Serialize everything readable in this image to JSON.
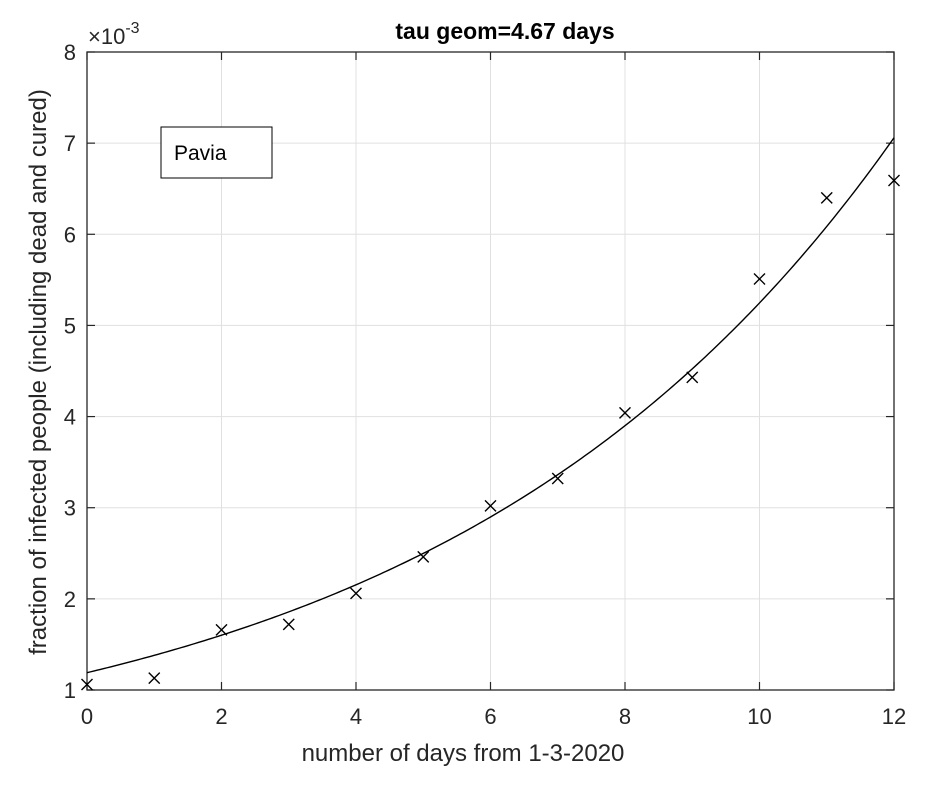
{
  "chart_data": {
    "type": "scatter",
    "title": "tau geom=4.67 days",
    "xlabel": "number of days from 1-3-2020",
    "ylabel": "fraction of infected people (including dead and cured)",
    "exponent_label": {
      "prefix": "×10",
      "power": "-3"
    },
    "xlim": [
      0,
      12
    ],
    "ylim": [
      1,
      8
    ],
    "xticks": [
      0,
      2,
      4,
      6,
      8,
      10,
      12
    ],
    "yticks": [
      1,
      2,
      3,
      4,
      5,
      6,
      7,
      8
    ],
    "grid": true,
    "legend": {
      "entries": [
        "Pavia"
      ],
      "placement": "top-left"
    },
    "colors": {
      "data": "#000000",
      "fit": "#000000",
      "grid": "#e0e0e0",
      "axis": "#262626"
    },
    "series": [
      {
        "marker": "x",
        "x": [
          0,
          1,
          2,
          3,
          4,
          5,
          6,
          7,
          8,
          9,
          10,
          11,
          12
        ],
        "y": [
          1.06,
          1.13,
          1.66,
          1.72,
          2.06,
          2.46,
          3.02,
          3.32,
          4.04,
          4.43,
          5.51,
          6.4,
          6.59
        ]
      },
      {
        "type": "line",
        "function": "exponential",
        "params": {
          "a": 1.19,
          "tau": 6.74
        },
        "x_range": [
          0,
          12
        ]
      }
    ]
  }
}
